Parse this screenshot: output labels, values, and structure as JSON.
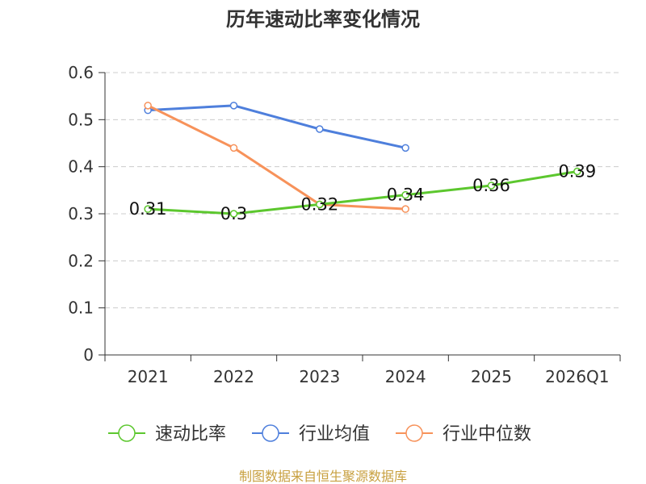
{
  "chart_data": {
    "type": "line",
    "title": "历年速动比率变化情况",
    "categories": [
      "2021",
      "2022",
      "2023",
      "2024",
      "2025",
      "2026Q1"
    ],
    "ylim": [
      0,
      0.6
    ],
    "yticks": [
      "0",
      "0.1",
      "0.2",
      "0.3",
      "0.4",
      "0.5",
      "0.6"
    ],
    "grid": true,
    "legend_position": "bottom",
    "series": [
      {
        "name": "速动比率",
        "color": "#5cc72e",
        "values": [
          0.31,
          0.3,
          0.32,
          0.34,
          0.36,
          0.39
        ],
        "labels": [
          "0.31",
          "0.3",
          "0.32",
          "0.34",
          "0.36",
          "0.39"
        ]
      },
      {
        "name": "行业均值",
        "color": "#4e7fdc",
        "values": [
          0.52,
          0.53,
          0.48,
          0.44,
          null,
          null
        ]
      },
      {
        "name": "行业中位数",
        "color": "#f7925a",
        "values": [
          0.53,
          0.44,
          0.32,
          0.31,
          null,
          null
        ]
      }
    ],
    "source": "制图数据来自恒生聚源数据库"
  }
}
